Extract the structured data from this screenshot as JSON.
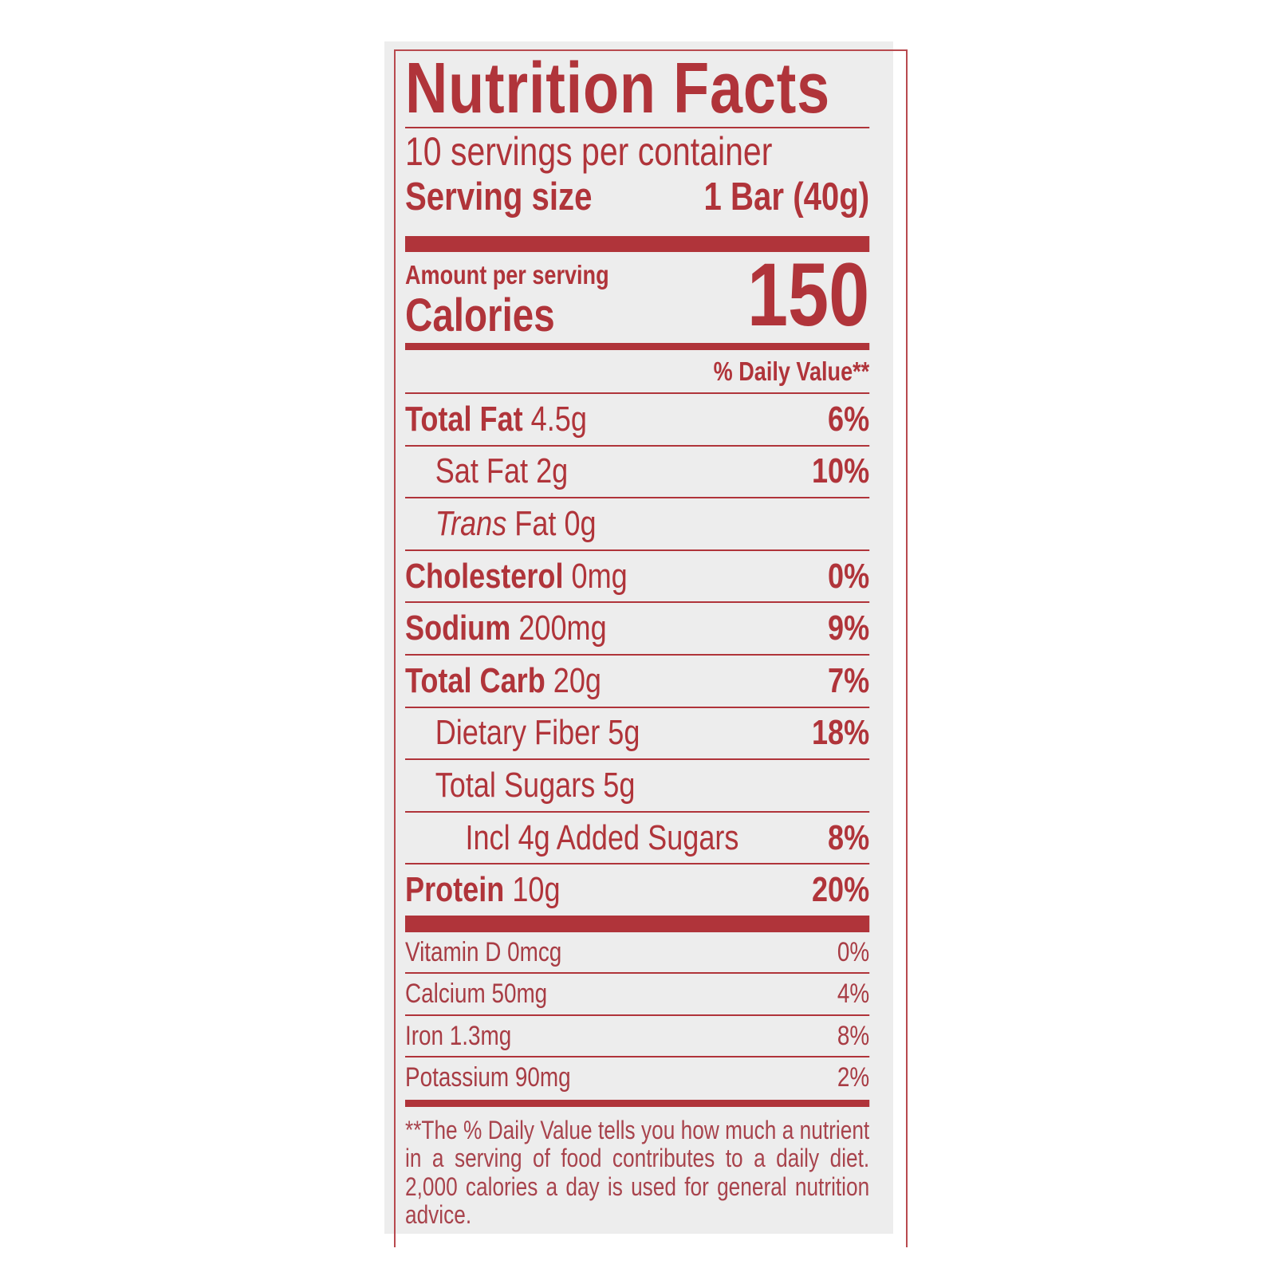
{
  "label": {
    "title": "Nutrition Facts",
    "servings_per_container": "10 servings per container",
    "serving_size_label": "Serving size",
    "serving_size_value": "1 Bar (40g)",
    "amount_per_serving": "Amount per serving",
    "calories_label": "Calories",
    "calories_value": "150",
    "daily_value_header": "% Daily Value**",
    "nutrients": [
      {
        "name": "Total Fat",
        "amount": "4.5g",
        "dv": "6%",
        "bold": true,
        "indent": 0
      },
      {
        "name": "Sat Fat",
        "amount": "2g",
        "dv": "10%",
        "bold": false,
        "indent": 1
      },
      {
        "name": "Trans",
        "name_suffix": "Fat",
        "amount": "0g",
        "dv": "",
        "bold": false,
        "indent": 1
      },
      {
        "name": "Cholesterol",
        "amount": "0mg",
        "dv": "0%",
        "bold": true,
        "indent": 0
      },
      {
        "name": "Sodium",
        "amount": "200mg",
        "dv": "9%",
        "bold": true,
        "indent": 0
      },
      {
        "name": "Total Carb",
        "amount": "20g",
        "dv": "7%",
        "bold": true,
        "indent": 0
      },
      {
        "name": "Dietary Fiber",
        "amount": "5g",
        "dv": "18%",
        "bold": false,
        "indent": 1
      },
      {
        "name": "Total Sugars",
        "amount": "5g",
        "dv": "",
        "bold": false,
        "indent": 1
      },
      {
        "name": "Incl 4g Added Sugars",
        "amount": "",
        "dv": "8%",
        "bold": false,
        "indent": 2
      },
      {
        "name": "Protein",
        "amount": "10g",
        "dv": "20%",
        "bold": true,
        "indent": 0
      }
    ],
    "vitamins": [
      {
        "name": "Vitamin D 0mcg",
        "dv": "0%"
      },
      {
        "name": "Calcium 50mg",
        "dv": "4%"
      },
      {
        "name": "Iron 1.3mg",
        "dv": "8%"
      },
      {
        "name": "Potassium 90mg",
        "dv": "2%"
      }
    ],
    "footnote": "**The % Daily Value tells you how much a nutrient in a serving of food contributes to a daily diet. 2,000 calories a day is used for general nutrition advice.",
    "colors": {
      "ink": "#b0343a",
      "background": "#ededed"
    }
  }
}
